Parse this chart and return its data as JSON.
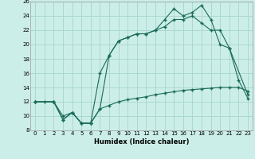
{
  "xlabel": "Humidex (Indice chaleur)",
  "bg_color": "#cceee8",
  "grid_color": "#aad8d0",
  "line_color": "#1a6b5a",
  "xlim": [
    -0.5,
    23.5
  ],
  "ylim": [
    8,
    26
  ],
  "xticks": [
    0,
    1,
    2,
    3,
    4,
    5,
    6,
    7,
    8,
    9,
    10,
    11,
    12,
    13,
    14,
    15,
    16,
    17,
    18,
    19,
    20,
    21,
    22,
    23
  ],
  "yticks": [
    8,
    10,
    12,
    14,
    16,
    18,
    20,
    22,
    24,
    26
  ],
  "line1_x": [
    0,
    1,
    2,
    3,
    4,
    5,
    6,
    7,
    8,
    9,
    10,
    11,
    12,
    13,
    14,
    15,
    16,
    17,
    18,
    19,
    20,
    21,
    22,
    23
  ],
  "line1_y": [
    12,
    12,
    12,
    9.5,
    10.5,
    9,
    9,
    11,
    18.5,
    20.5,
    21,
    21.5,
    21.5,
    22,
    22.5,
    23.5,
    23.5,
    24,
    23,
    22,
    22,
    19.5,
    15,
    12.5
  ],
  "line2_x": [
    0,
    2,
    3,
    4,
    5,
    6,
    7,
    8,
    9,
    10,
    11,
    12,
    13,
    14,
    15,
    16,
    17,
    18,
    19,
    20,
    21,
    23
  ],
  "line2_y": [
    12,
    12,
    9.5,
    10.5,
    9,
    9,
    16,
    18.5,
    20.5,
    21,
    21.5,
    21.5,
    22,
    23.5,
    25,
    24,
    24.5,
    25.5,
    23.5,
    20,
    19.5,
    13
  ],
  "line3_x": [
    0,
    2,
    3,
    4,
    5,
    6,
    7,
    8,
    9,
    10,
    11,
    12,
    13,
    14,
    15,
    16,
    17,
    18,
    19,
    20,
    21,
    22,
    23
  ],
  "line3_y": [
    12,
    12,
    10,
    10.5,
    9,
    9,
    11,
    11.5,
    12,
    12.3,
    12.5,
    12.7,
    13,
    13.2,
    13.4,
    13.6,
    13.7,
    13.8,
    13.9,
    14,
    14,
    14,
    13.5
  ]
}
